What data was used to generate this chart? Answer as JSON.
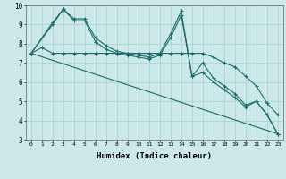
{
  "title": "",
  "xlabel": "Humidex (Indice chaleur)",
  "bg_color": "#cce8e8",
  "grid_color": "#aad4d0",
  "line_color": "#1a6b6a",
  "xlim": [
    -0.5,
    23.5
  ],
  "ylim": [
    3,
    10
  ],
  "xtick_labels": [
    "0",
    "1",
    "2",
    "3",
    "4",
    "5",
    "6",
    "7",
    "8",
    "9",
    "10",
    "11",
    "12",
    "13",
    "14",
    "15",
    "16",
    "17",
    "18",
    "19",
    "20",
    "21",
    "22",
    "23"
  ],
  "xticks": [
    0,
    1,
    2,
    3,
    4,
    5,
    6,
    7,
    8,
    9,
    10,
    11,
    12,
    13,
    14,
    15,
    16,
    17,
    18,
    19,
    20,
    21,
    22,
    23
  ],
  "yticks": [
    3,
    4,
    5,
    6,
    7,
    8,
    9,
    10
  ],
  "series": [
    {
      "x": [
        0,
        1,
        2,
        3,
        4,
        5,
        6,
        7,
        8,
        9,
        10,
        11,
        12,
        13,
        14,
        15,
        16,
        17,
        18,
        19,
        20,
        21,
        22,
        23
      ],
      "y": [
        7.5,
        7.8,
        7.5,
        7.5,
        7.5,
        7.5,
        7.5,
        7.5,
        7.5,
        7.5,
        7.5,
        7.5,
        7.5,
        7.5,
        7.5,
        7.5,
        7.5,
        7.3,
        7.0,
        6.8,
        6.3,
        5.8,
        4.9,
        4.3
      ],
      "marker": true,
      "lw": 0.8
    },
    {
      "x": [
        0,
        2,
        3,
        4,
        5,
        6,
        7,
        8,
        9,
        10,
        11,
        12,
        13,
        14,
        15,
        16,
        17,
        18,
        19,
        20,
        21,
        22,
        23
      ],
      "y": [
        7.5,
        9.1,
        9.8,
        9.3,
        9.3,
        8.3,
        7.9,
        7.6,
        7.5,
        7.4,
        7.3,
        7.5,
        8.5,
        9.7,
        6.3,
        7.0,
        6.2,
        5.8,
        5.4,
        4.8,
        5.0,
        4.3,
        3.3
      ],
      "marker": true,
      "lw": 0.8
    },
    {
      "x": [
        0,
        2,
        3,
        4,
        5,
        6,
        7,
        8,
        9,
        10,
        11,
        12,
        13,
        14,
        15,
        16,
        17,
        18,
        19,
        20,
        21,
        22,
        23
      ],
      "y": [
        7.5,
        9.0,
        9.8,
        9.2,
        9.2,
        8.1,
        7.7,
        7.5,
        7.4,
        7.3,
        7.2,
        7.4,
        8.3,
        9.5,
        6.3,
        6.5,
        6.0,
        5.6,
        5.2,
        4.7,
        5.0,
        4.3,
        3.3
      ],
      "marker": true,
      "lw": 0.8
    },
    {
      "x": [
        0,
        23
      ],
      "y": [
        7.5,
        3.3
      ],
      "marker": false,
      "lw": 0.8
    }
  ]
}
